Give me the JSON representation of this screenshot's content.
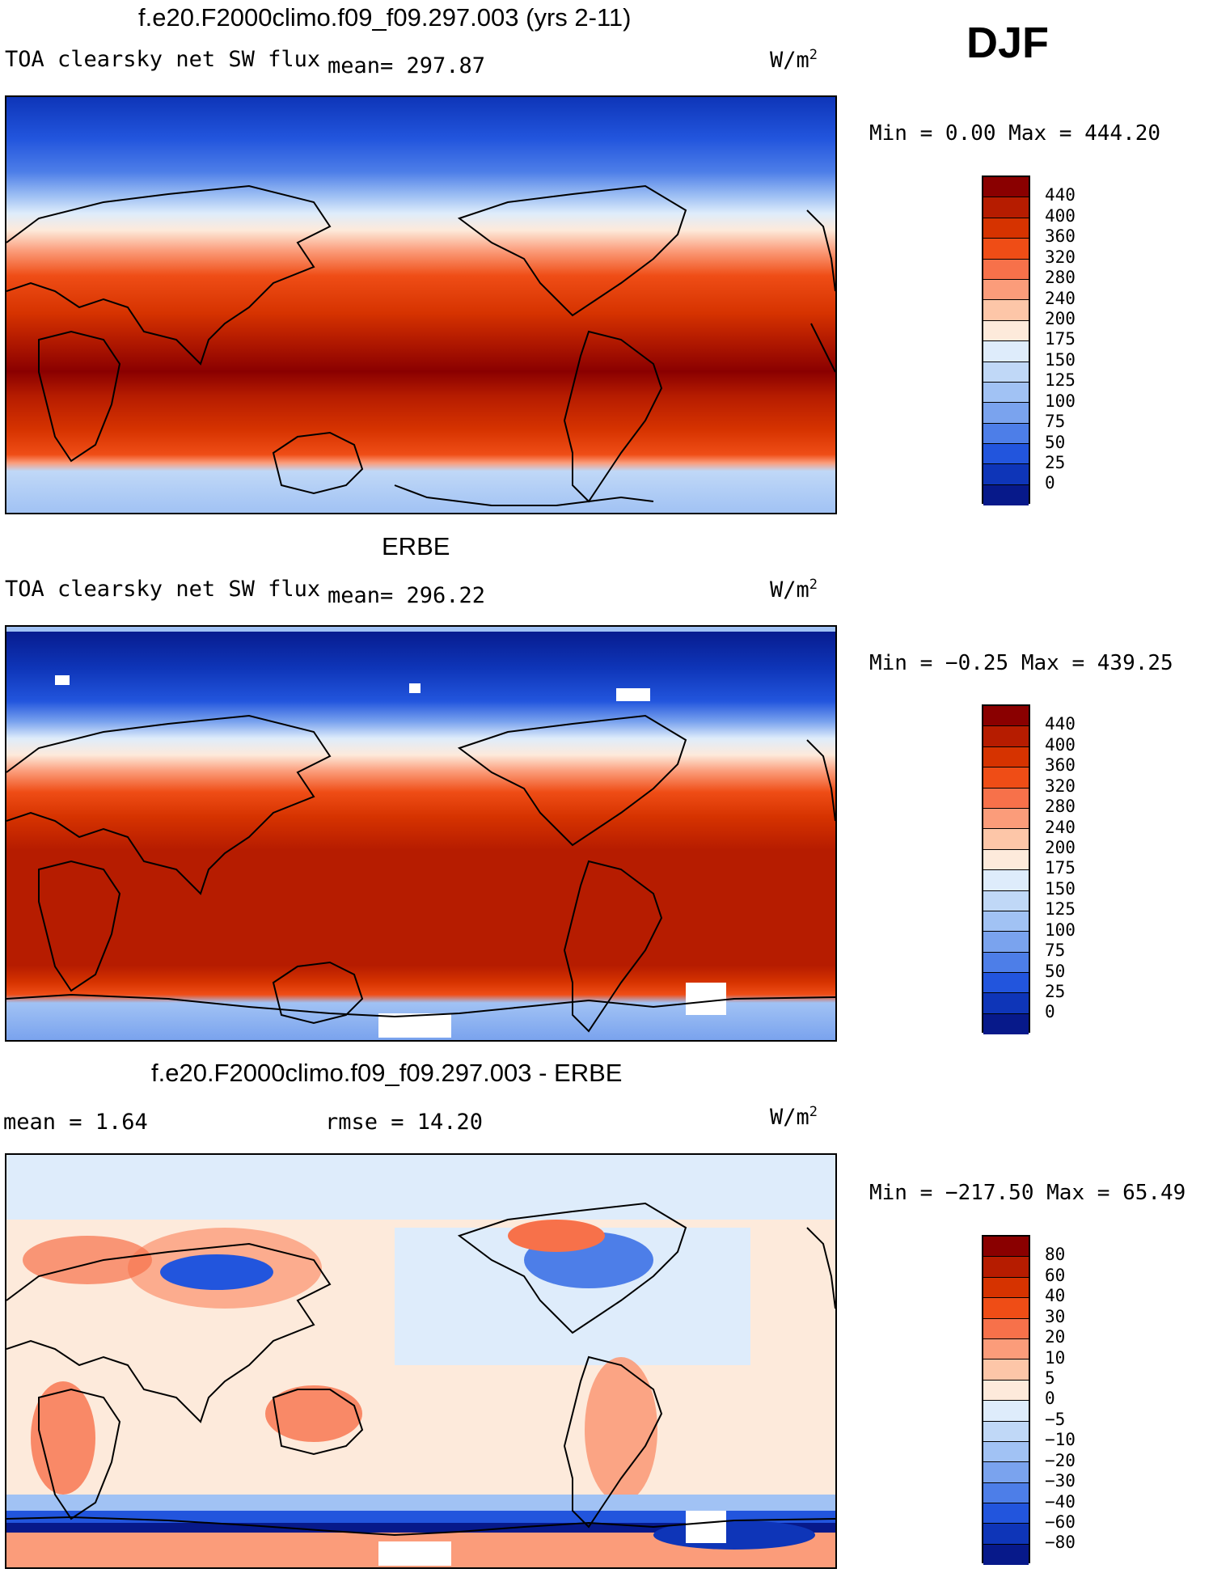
{
  "season": "DJF",
  "panels": [
    {
      "title": "f.e20.F2000climo.f09_f09.297.003 (yrs 2-11)",
      "variable": "TOA clearsky net SW flux",
      "stat1": "mean= 297.87",
      "stat2": "",
      "units_base": "W/m",
      "units_exp": "2",
      "minmax": "Min =    0.00 Max = 444.20",
      "colorbar": {
        "labels": [
          "440",
          "400",
          "360",
          "320",
          "280",
          "240",
          "200",
          "175",
          "150",
          "125",
          "100",
          "75",
          "50",
          "25",
          "0"
        ],
        "colors": [
          "#8a0000",
          "#b61c00",
          "#d63300",
          "#ef4d16",
          "#f7714a",
          "#fb9c7a",
          "#fdc6a8",
          "#fdeadb",
          "#deecfb",
          "#c0d8f7",
          "#a1c2f4",
          "#7aa3ee",
          "#4d7ee8",
          "#2255dd",
          "#0e35b8",
          "#07198a"
        ]
      }
    },
    {
      "title": "ERBE",
      "variable": "TOA clearsky net SW flux",
      "stat1": "mean= 296.22",
      "stat2": "",
      "units_base": "W/m",
      "units_exp": "2",
      "minmax": "Min =  −0.25 Max = 439.25",
      "colorbar": {
        "labels": [
          "440",
          "400",
          "360",
          "320",
          "280",
          "240",
          "200",
          "175",
          "150",
          "125",
          "100",
          "75",
          "50",
          "25",
          "0"
        ],
        "colors": [
          "#8a0000",
          "#b61c00",
          "#d63300",
          "#ef4d16",
          "#f7714a",
          "#fb9c7a",
          "#fdc6a8",
          "#fdeadb",
          "#deecfb",
          "#c0d8f7",
          "#a1c2f4",
          "#7aa3ee",
          "#4d7ee8",
          "#2255dd",
          "#0e35b8",
          "#07198a"
        ]
      }
    },
    {
      "title": "f.e20.F2000climo.f09_f09.297.003 - ERBE",
      "variable": "",
      "stat1": "mean =    1.64",
      "stat2": "rmse =   14.20",
      "units_base": "W/m",
      "units_exp": "2",
      "minmax": "Min = −217.50 Max =   65.49",
      "colorbar": {
        "labels": [
          "80",
          "60",
          "40",
          "30",
          "20",
          "10",
          "5",
          "0",
          "−5",
          "−10",
          "−20",
          "−30",
          "−40",
          "−60",
          "−80"
        ],
        "colors": [
          "#8a0000",
          "#b61c00",
          "#d63300",
          "#ef4d16",
          "#f7714a",
          "#fb9c7a",
          "#fdc6a8",
          "#fdeadb",
          "#deecfb",
          "#c0d8f7",
          "#a1c2f4",
          "#7aa3ee",
          "#4d7ee8",
          "#2255dd",
          "#0e35b8",
          "#07198a"
        ]
      }
    }
  ]
}
